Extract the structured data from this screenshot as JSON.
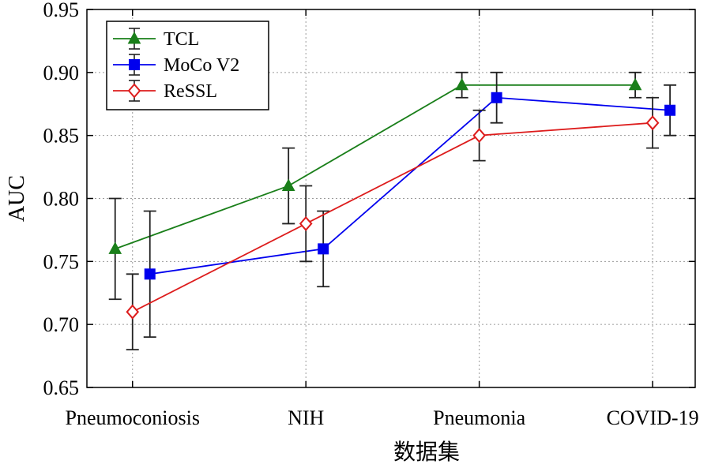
{
  "chart_data": {
    "type": "line",
    "categories": [
      "Pneumoconiosis",
      "NIH",
      "Pneumonia",
      "COVID-19"
    ],
    "xlabel": "数据集",
    "ylabel": "AUC",
    "ylim": [
      0.65,
      0.95
    ],
    "yticks": [
      "0.65",
      "0.70",
      "0.75",
      "0.80",
      "0.85",
      "0.90",
      "0.95"
    ],
    "grid": true,
    "legend_position": "top-left",
    "series": [
      {
        "name": "TCL",
        "color": "#1a7f1a",
        "marker": "triangle",
        "values": [
          0.76,
          0.81,
          0.89,
          0.89
        ],
        "err_low": [
          0.72,
          0.78,
          0.88,
          0.88
        ],
        "err_high": [
          0.8,
          0.84,
          0.9,
          0.9
        ]
      },
      {
        "name": "MoCo V2",
        "color": "#0000ee",
        "marker": "square",
        "values": [
          0.74,
          0.76,
          0.88,
          0.87
        ],
        "err_low": [
          0.69,
          0.73,
          0.86,
          0.85
        ],
        "err_high": [
          0.79,
          0.79,
          0.9,
          0.89
        ]
      },
      {
        "name": "ReSSL",
        "color": "#dd1c1c",
        "marker": "diamond",
        "values": [
          0.71,
          0.78,
          0.85,
          0.86
        ],
        "err_low": [
          0.68,
          0.75,
          0.83,
          0.84
        ],
        "err_high": [
          0.74,
          0.81,
          0.87,
          0.88
        ]
      }
    ]
  }
}
